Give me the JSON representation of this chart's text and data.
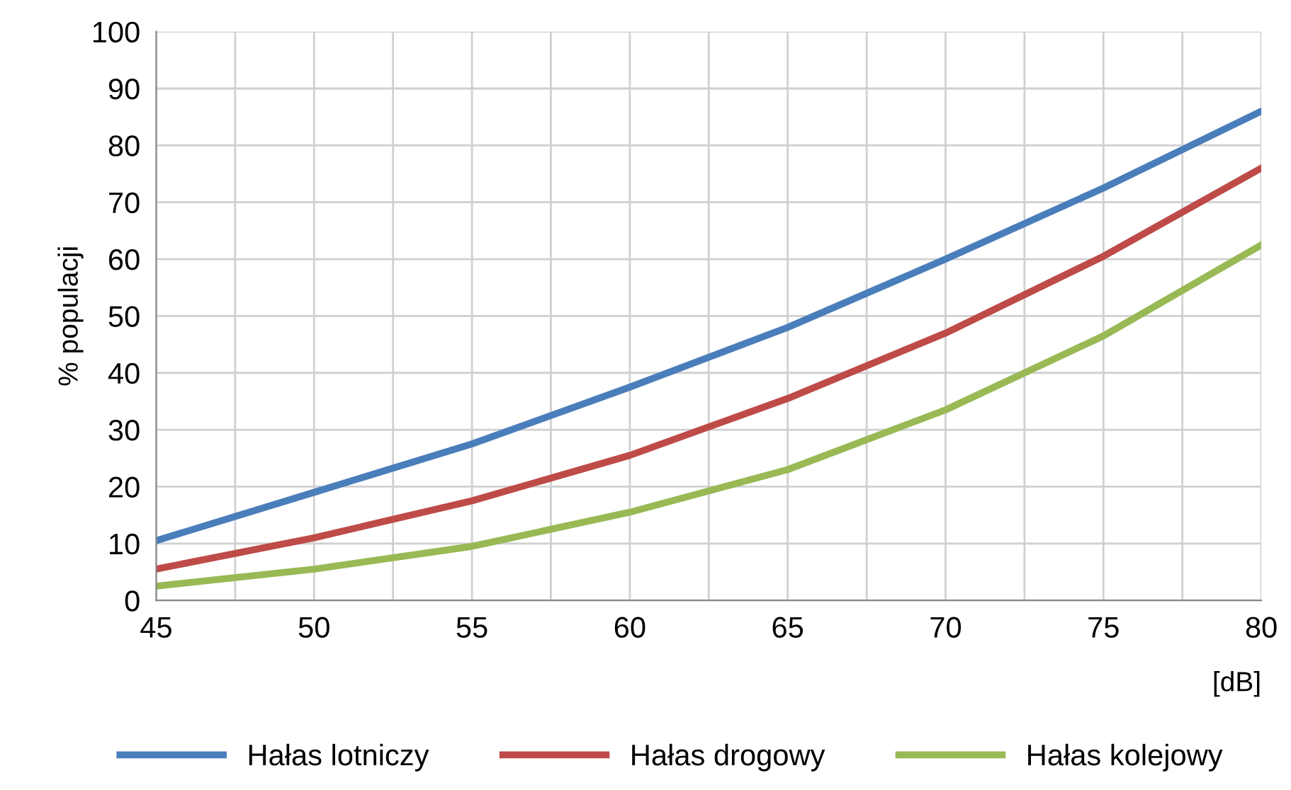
{
  "chart_data": {
    "type": "line",
    "xlabel": "[dB]",
    "ylabel": "% populacji",
    "x": [
      45,
      50,
      55,
      60,
      65,
      70,
      75,
      80
    ],
    "series": [
      {
        "name": "Hałas lotniczy",
        "color": "#4a7ebb",
        "values": [
          10.5,
          19,
          27.5,
          37.5,
          48,
          60,
          72.5,
          86
        ]
      },
      {
        "name": "Hałas drogowy",
        "color": "#be4b48",
        "values": [
          5.5,
          11,
          17.5,
          25.5,
          35.5,
          47,
          60.5,
          76
        ]
      },
      {
        "name": "Hałas kolejowy",
        "color": "#98b954",
        "values": [
          2.5,
          5.5,
          9.5,
          15.5,
          23,
          33.5,
          46.5,
          62.5
        ]
      }
    ],
    "xlim": [
      45,
      80
    ],
    "xticks": [
      45,
      {
        "value": 47.5,
        "label": null
      },
      50,
      {
        "value": 52.5,
        "label": null
      },
      55,
      {
        "value": 57.5,
        "label": null
      },
      60,
      {
        "value": 62.5,
        "label": null
      },
      65,
      {
        "value": 67.5,
        "label": null
      },
      70,
      {
        "value": 72.5,
        "label": null
      },
      75,
      {
        "value": 77.5,
        "label": null
      },
      80
    ],
    "ylim": [
      0,
      100
    ],
    "yticks": [
      0,
      10,
      20,
      30,
      40,
      50,
      60,
      70,
      80,
      90,
      100
    ],
    "grid": true,
    "legend": "bottom",
    "marker": "none",
    "line_style": "solid"
  }
}
